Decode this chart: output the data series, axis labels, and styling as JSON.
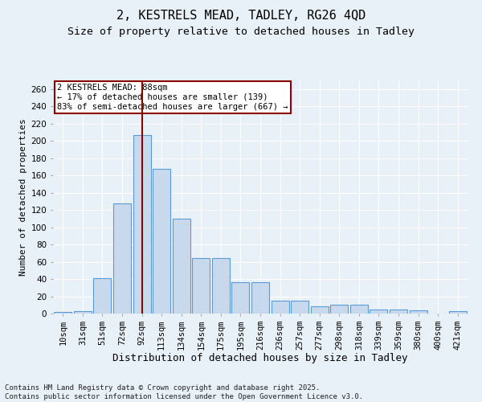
{
  "title1": "2, KESTRELS MEAD, TADLEY, RG26 4QD",
  "title2": "Size of property relative to detached houses in Tadley",
  "xlabel": "Distribution of detached houses by size in Tadley",
  "ylabel": "Number of detached properties",
  "categories": [
    "10sqm",
    "31sqm",
    "51sqm",
    "72sqm",
    "92sqm",
    "113sqm",
    "134sqm",
    "154sqm",
    "175sqm",
    "195sqm",
    "216sqm",
    "236sqm",
    "257sqm",
    "277sqm",
    "298sqm",
    "318sqm",
    "339sqm",
    "359sqm",
    "380sqm",
    "400sqm",
    "421sqm"
  ],
  "values": [
    2,
    3,
    41,
    128,
    207,
    168,
    110,
    64,
    64,
    36,
    36,
    15,
    15,
    8,
    10,
    10,
    5,
    5,
    4,
    0,
    3
  ],
  "bar_color": "#c8d9ed",
  "bar_edge_color": "#5b9bd5",
  "vline_x_idx": 4,
  "vline_color": "#8b0000",
  "annotation_text": "2 KESTRELS MEAD: 88sqm\n← 17% of detached houses are smaller (139)\n83% of semi-detached houses are larger (667) →",
  "annotation_box_color": "#ffffff",
  "annotation_box_edge": "#8b0000",
  "ylim": [
    0,
    270
  ],
  "yticks": [
    0,
    20,
    40,
    60,
    80,
    100,
    120,
    140,
    160,
    180,
    200,
    220,
    240,
    260
  ],
  "bg_color": "#e8f0f8",
  "plot_bg_color": "#e8f0f8",
  "footer": "Contains HM Land Registry data © Crown copyright and database right 2025.\nContains public sector information licensed under the Open Government Licence v3.0.",
  "title1_fontsize": 11,
  "title2_fontsize": 9.5,
  "xlabel_fontsize": 9,
  "ylabel_fontsize": 8,
  "footer_fontsize": 6.5,
  "tick_fontsize": 7.5,
  "ann_fontsize": 7.5
}
